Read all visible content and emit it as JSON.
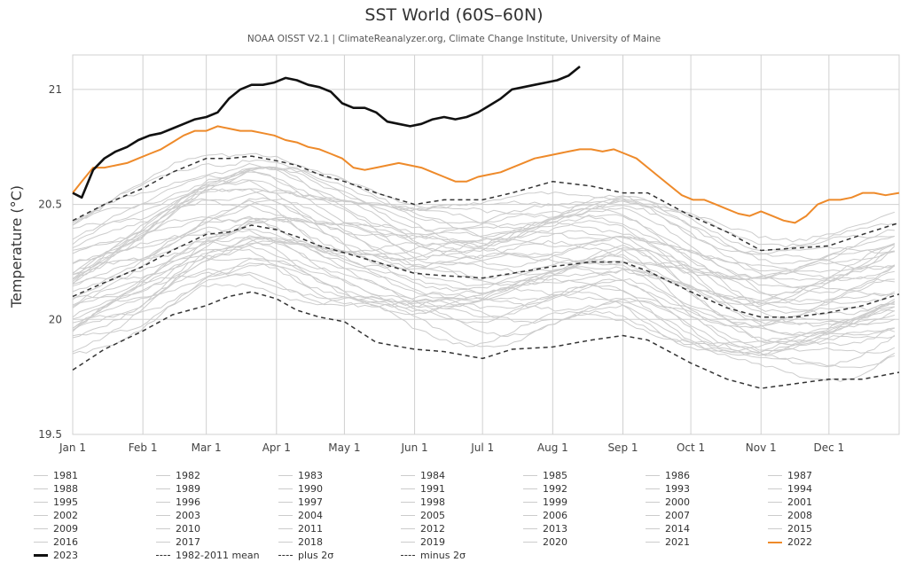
{
  "chart_data": {
    "type": "line",
    "title": "SST World (60S–60N)",
    "subtitle": "NOAA OISST V2.1 | ClimateReanalyzer.org, Climate Change Institute, University of Maine",
    "ylabel": "Temperature (°C)",
    "xlabel": "",
    "ylim": [
      19.5,
      21.15
    ],
    "xlim": [
      1,
      366
    ],
    "y_ticks": [
      19.5,
      20,
      20.5,
      21
    ],
    "y_tick_labels": [
      "19.5",
      "20",
      "20.5",
      "21"
    ],
    "x_ticks": [
      {
        "label": "Jan 1",
        "day": 1
      },
      {
        "label": "Feb 1",
        "day": 32
      },
      {
        "label": "Mar 1",
        "day": 60
      },
      {
        "label": "Apr 1",
        "day": 91
      },
      {
        "label": "May 1",
        "day": 121
      },
      {
        "label": "Jun 1",
        "day": 152
      },
      {
        "label": "Jul 1",
        "day": 182
      },
      {
        "label": "Aug 1",
        "day": 213
      },
      {
        "label": "Sep 1",
        "day": 244
      },
      {
        "label": "Oct 1",
        "day": 274
      },
      {
        "label": "Nov 1",
        "day": 305
      },
      {
        "label": "Dec 1",
        "day": 335
      }
    ],
    "grid": true,
    "legend_position": "bottom",
    "colors": {
      "background_years": "#cccccc",
      "y2023": "#111111",
      "y2022": "#ee8a2a",
      "stats": "#333333",
      "grid": "#d0d0d0"
    },
    "background_years": [
      "1981",
      "1982",
      "1983",
      "1984",
      "1985",
      "1986",
      "1987",
      "1988",
      "1989",
      "1990",
      "1991",
      "1992",
      "1993",
      "1994",
      "1995",
      "1996",
      "1997",
      "1998",
      "1999",
      "2000",
      "2001",
      "2002",
      "2003",
      "2004",
      "2005",
      "2006",
      "2007",
      "2008",
      "2009",
      "2010",
      "2011",
      "2012",
      "2013",
      "2014",
      "2015",
      "2016",
      "2017",
      "2018",
      "2019",
      "2020",
      "2021"
    ],
    "series": [
      {
        "name": "2023",
        "style": "bold-black",
        "x": [
          1,
          5,
          10,
          15,
          20,
          25,
          30,
          35,
          40,
          45,
          50,
          55,
          60,
          65,
          70,
          75,
          80,
          85,
          90,
          95,
          100,
          105,
          110,
          115,
          120,
          125,
          130,
          135,
          140,
          145,
          150,
          155,
          160,
          165,
          170,
          175,
          180,
          185,
          190,
          195,
          200,
          205,
          210,
          215,
          220,
          225
        ],
        "y": [
          20.55,
          20.53,
          20.65,
          20.7,
          20.73,
          20.75,
          20.78,
          20.8,
          20.81,
          20.83,
          20.85,
          20.87,
          20.88,
          20.9,
          20.96,
          21.0,
          21.02,
          21.02,
          21.03,
          21.05,
          21.04,
          21.02,
          21.01,
          20.99,
          20.94,
          20.92,
          20.92,
          20.9,
          20.86,
          20.85,
          20.84,
          20.85,
          20.87,
          20.88,
          20.87,
          20.88,
          20.9,
          20.93,
          20.96,
          21.0,
          21.01,
          21.02,
          21.03,
          21.04,
          21.06,
          21.1
        ]
      },
      {
        "name": "2022",
        "style": "orange",
        "x": [
          1,
          5,
          10,
          15,
          20,
          25,
          30,
          35,
          40,
          45,
          50,
          55,
          60,
          65,
          70,
          75,
          80,
          85,
          90,
          95,
          100,
          105,
          110,
          115,
          120,
          125,
          130,
          135,
          140,
          145,
          150,
          155,
          160,
          165,
          170,
          175,
          180,
          185,
          190,
          195,
          200,
          205,
          210,
          215,
          220,
          225,
          230,
          235,
          240,
          245,
          250,
          255,
          260,
          265,
          270,
          275,
          280,
          285,
          290,
          295,
          300,
          305,
          310,
          315,
          320,
          325,
          330,
          335,
          340,
          345,
          350,
          355,
          360,
          366
        ],
        "y": [
          20.55,
          20.6,
          20.66,
          20.66,
          20.67,
          20.68,
          20.7,
          20.72,
          20.74,
          20.77,
          20.8,
          20.82,
          20.82,
          20.84,
          20.83,
          20.82,
          20.82,
          20.81,
          20.8,
          20.78,
          20.77,
          20.75,
          20.74,
          20.72,
          20.7,
          20.66,
          20.65,
          20.66,
          20.67,
          20.68,
          20.67,
          20.66,
          20.64,
          20.62,
          20.6,
          20.6,
          20.62,
          20.63,
          20.64,
          20.66,
          20.68,
          20.7,
          20.71,
          20.72,
          20.73,
          20.74,
          20.74,
          20.73,
          20.74,
          20.72,
          20.7,
          20.66,
          20.62,
          20.58,
          20.54,
          20.52,
          20.52,
          20.5,
          20.48,
          20.46,
          20.45,
          20.47,
          20.45,
          20.43,
          20.42,
          20.45,
          20.5,
          20.52,
          20.52,
          20.53,
          20.55,
          20.55,
          20.54,
          20.55
        ]
      },
      {
        "name": "1982-2011 mean",
        "style": "dashed",
        "x": [
          1,
          15,
          32,
          45,
          60,
          70,
          80,
          91,
          100,
          110,
          121,
          135,
          152,
          165,
          182,
          195,
          213,
          230,
          244,
          255,
          274,
          290,
          305,
          320,
          335,
          350,
          366
        ],
        "y": [
          20.1,
          20.16,
          20.23,
          20.3,
          20.37,
          20.38,
          20.41,
          20.39,
          20.36,
          20.32,
          20.29,
          20.25,
          20.2,
          20.19,
          20.18,
          20.2,
          20.23,
          20.25,
          20.25,
          20.21,
          20.12,
          20.05,
          20.01,
          20.01,
          20.03,
          20.06,
          20.11
        ]
      },
      {
        "name": "plus 2σ",
        "style": "dashed",
        "x": [
          1,
          15,
          32,
          45,
          60,
          70,
          80,
          91,
          100,
          110,
          121,
          135,
          152,
          165,
          182,
          195,
          213,
          230,
          244,
          255,
          274,
          290,
          305,
          320,
          335,
          350,
          366
        ],
        "y": [
          20.43,
          20.5,
          20.57,
          20.64,
          20.7,
          20.7,
          20.71,
          20.69,
          20.67,
          20.63,
          20.6,
          20.55,
          20.5,
          20.52,
          20.52,
          20.55,
          20.6,
          20.58,
          20.55,
          20.55,
          20.45,
          20.38,
          20.3,
          20.31,
          20.32,
          20.37,
          20.42
        ]
      },
      {
        "name": "minus 2σ",
        "style": "dashed",
        "x": [
          1,
          15,
          32,
          45,
          60,
          70,
          80,
          91,
          100,
          110,
          121,
          135,
          152,
          165,
          182,
          195,
          213,
          230,
          244,
          255,
          274,
          290,
          305,
          320,
          335,
          350,
          366
        ],
        "y": [
          19.78,
          19.87,
          19.95,
          20.02,
          20.06,
          20.1,
          20.12,
          20.09,
          20.04,
          20.01,
          19.99,
          19.9,
          19.87,
          19.86,
          19.83,
          19.87,
          19.88,
          19.91,
          19.93,
          19.91,
          19.81,
          19.74,
          19.7,
          19.72,
          19.74,
          19.74,
          19.77
        ]
      }
    ],
    "legend": [
      "1981",
      "1982",
      "1983",
      "1984",
      "1985",
      "1986",
      "1987",
      "1988",
      "1989",
      "1990",
      "1991",
      "1992",
      "1993",
      "1994",
      "1995",
      "1996",
      "1997",
      "1998",
      "1999",
      "2000",
      "2001",
      "2002",
      "2003",
      "2004",
      "2005",
      "2006",
      "2007",
      "2008",
      "2009",
      "2010",
      "2011",
      "2012",
      "2013",
      "2014",
      "2015",
      "2016",
      "2017",
      "2018",
      "2019",
      "2020",
      "2021",
      "2022",
      "2023",
      "1982-2011 mean",
      "plus 2σ",
      "minus 2σ"
    ]
  }
}
